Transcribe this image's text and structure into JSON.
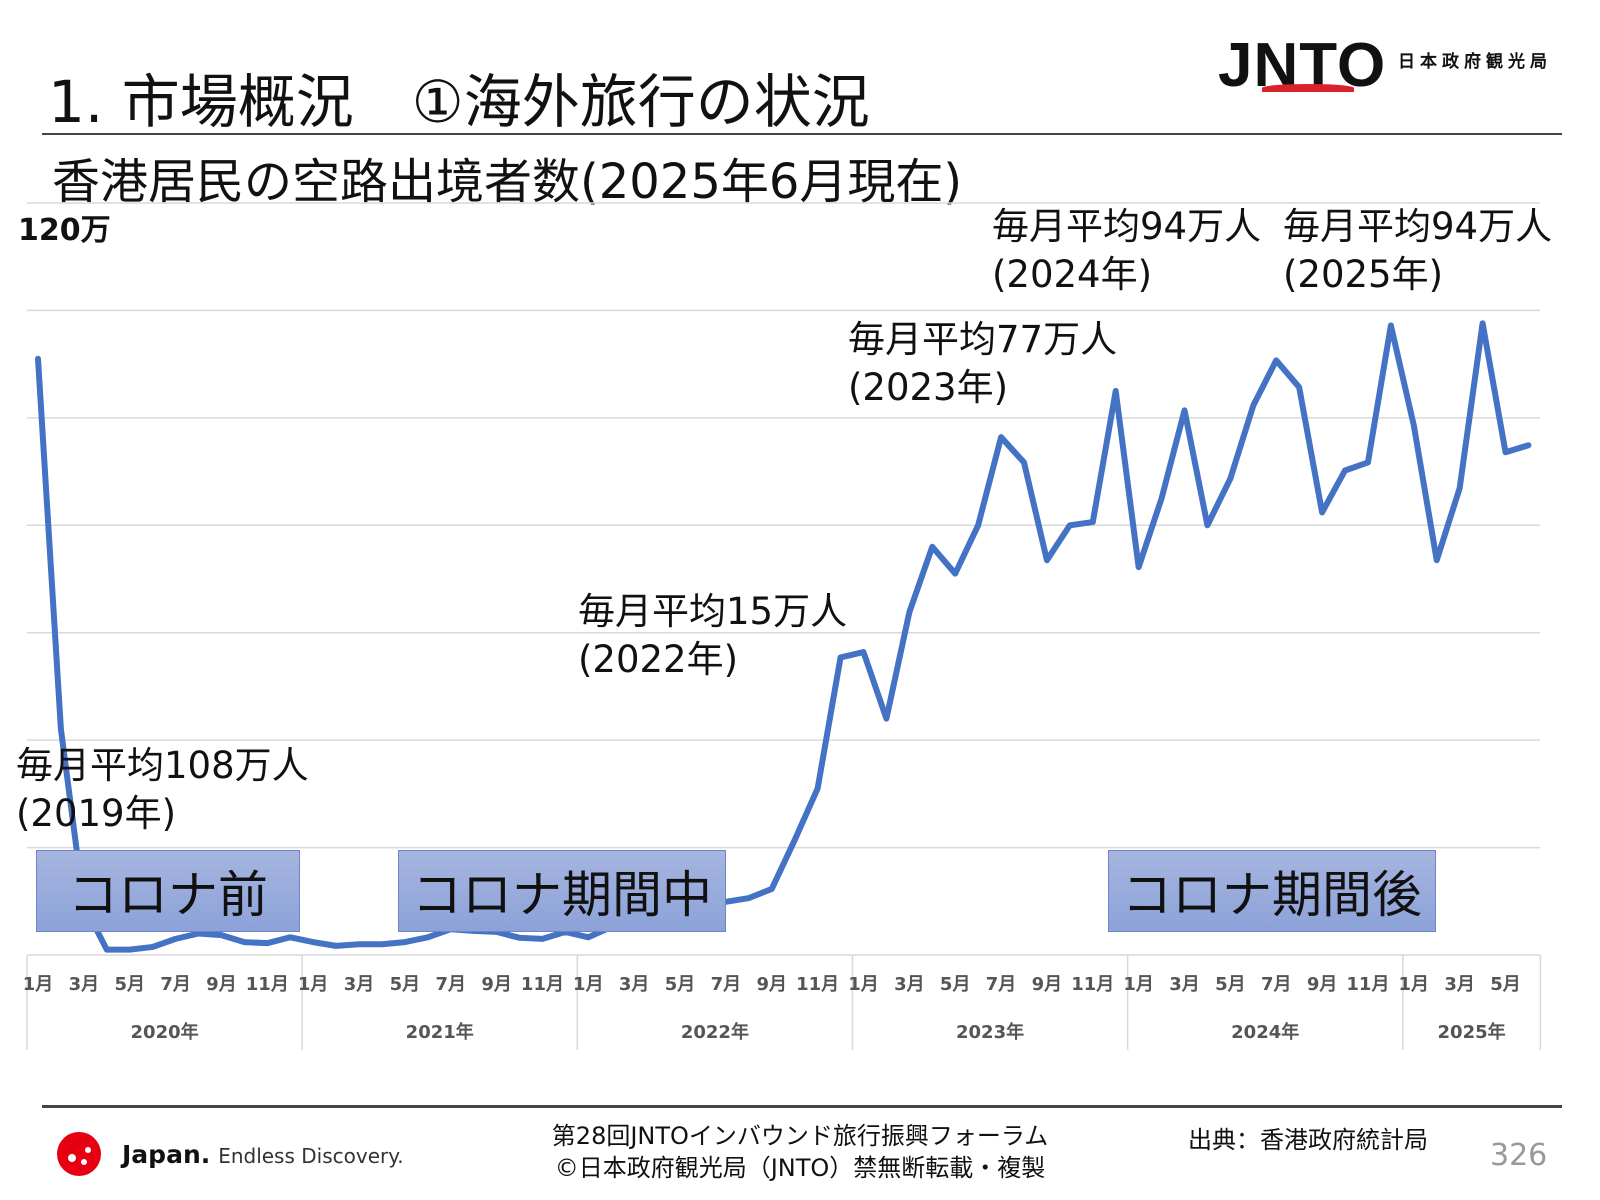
{
  "header": {
    "title": "1. 市場概況　①海外旅行の状況",
    "logo_text": "JNTO",
    "logo_org": "日本政府観光局",
    "subtitle": "香港居民の空路出境者数(2025年6月現在)"
  },
  "colors": {
    "line": "#4472c4",
    "grid": "#d9d9d9",
    "phase_box": "#8ea3d8",
    "logo_red": "#d8232a"
  },
  "annotations": [
    {
      "line1": "毎月平均108万人",
      "line2": "(2019年)"
    },
    {
      "line1": "毎月平均15万人",
      "line2": "(2022年)"
    },
    {
      "line1": "毎月平均77万人",
      "line2": "(2023年)"
    },
    {
      "line1": "毎月平均94万人",
      "line2": "(2024年)"
    },
    {
      "line1": "毎月平均94万人",
      "line2": "(2025年)"
    }
  ],
  "phases": [
    "コロナ前",
    "コロナ期間中",
    "コロナ期間後"
  ],
  "chart_data": {
    "type": "line",
    "title": "香港居民の空路出境者数(2025年6月現在)",
    "y_unit": "万",
    "y_tick_label": "120万",
    "ylim": [
      0,
      140
    ],
    "y_grid_step": 20,
    "grid": true,
    "years": [
      "2020年",
      "2021年",
      "2022年",
      "2023年",
      "2024年",
      "2025年"
    ],
    "month_tick_labels": [
      "1月",
      "3月",
      "5月",
      "7月",
      "9月",
      "11月"
    ],
    "month_tick_labels_2025": [
      "1月",
      "3月",
      "5月"
    ],
    "x_start": "2020-01",
    "x_end": "2025-06",
    "values": [
      111,
      42,
      9.3,
      1,
      1,
      1.5,
      3,
      4,
      3.7,
      2.4,
      2.2,
      3.3,
      2.4,
      1.7,
      2,
      2,
      2.4,
      3.3,
      4.8,
      4.5,
      4.3,
      3.2,
      3,
      4.3,
      3.3,
      5.2,
      6.3,
      5.4,
      6.1,
      9.1,
      9.9,
      10.6,
      12.3,
      21.4,
      31,
      55.4,
      56.4,
      44,
      63.8,
      76,
      71,
      80,
      96.4,
      91.7,
      73.5,
      80,
      80.6,
      105,
      72.2,
      85,
      101.4,
      80,
      88.7,
      102.3,
      110.7,
      105.7,
      82.4,
      90.2,
      91.7,
      117.2,
      98.6,
      73.5,
      86.9,
      117.6,
      93.6,
      94.9
    ]
  },
  "footer": {
    "brand": "Japan.",
    "tagline": "Endless Discovery.",
    "event": "第28回JNTOインバウンド旅行振興フォーラム",
    "copyright": "©日本政府観光局（JNTO）禁無断転載・複製",
    "source": "出典：香港政府統計局",
    "page": "326"
  }
}
